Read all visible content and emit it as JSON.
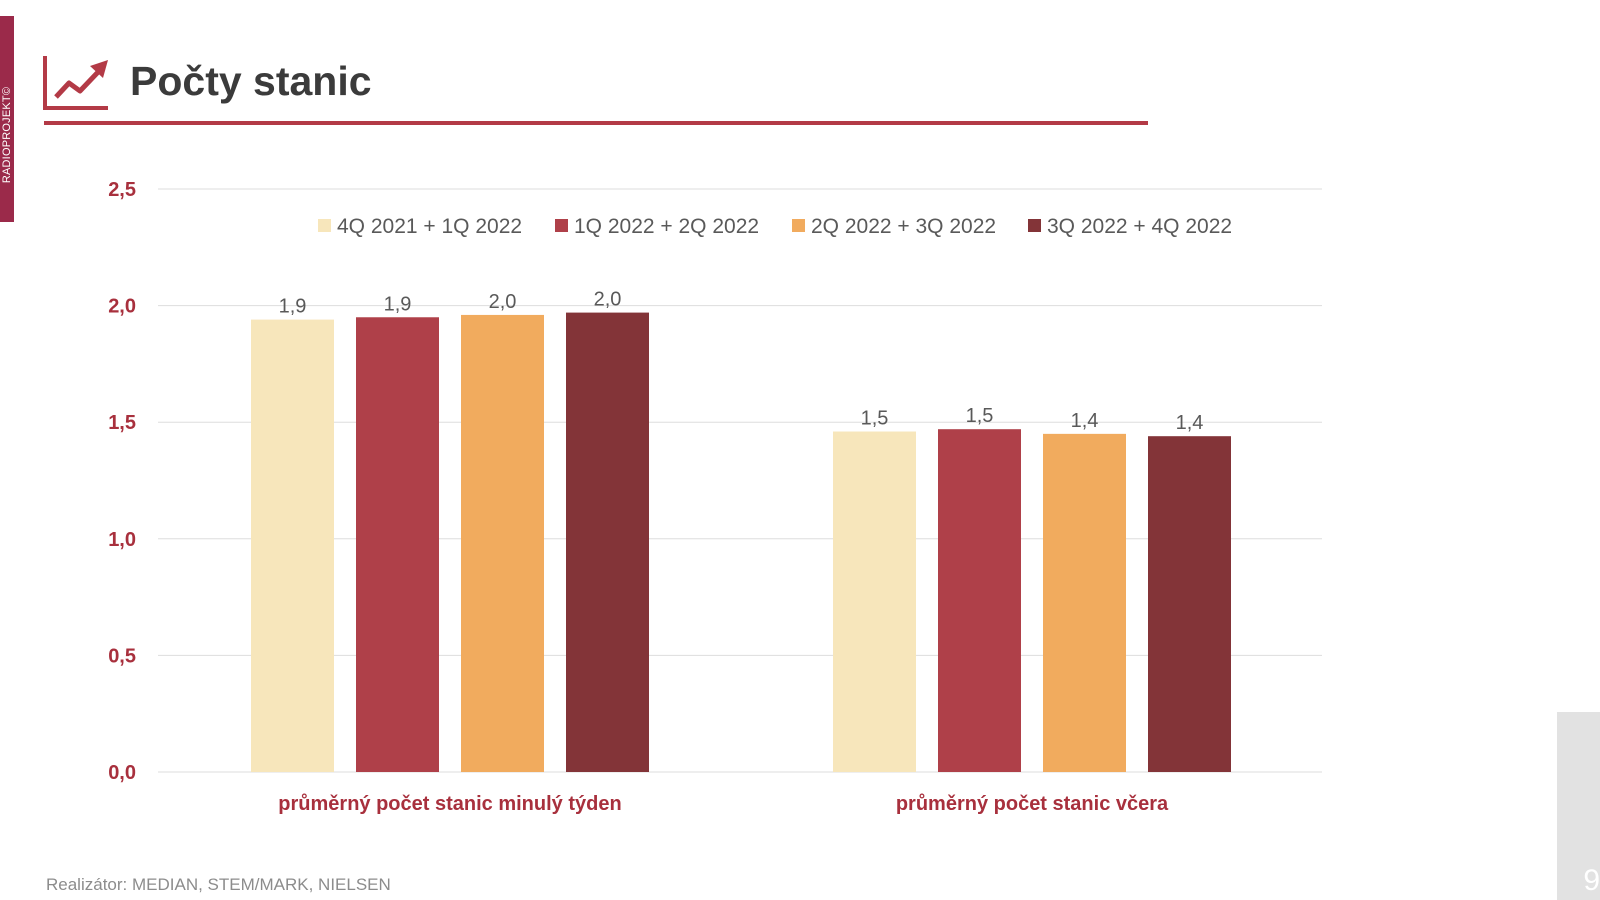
{
  "brand": {
    "side_label": "RADIOPROJEKT©"
  },
  "header": {
    "title": "Počty stanic"
  },
  "footer": {
    "source": "Realizátor: MEDIAN, STEM/MARK, NIELSEN",
    "page_number": "9"
  },
  "colors": {
    "accent": "#b33a46",
    "axis_label": "#a8303d",
    "series": [
      "#f7e6bb",
      "#af4049",
      "#f1ab5e",
      "#833438"
    ]
  },
  "chart_data": {
    "type": "bar",
    "title": "",
    "categories": [
      "průměrný počet stanic minulý týden",
      "průměrný počet stanic včera"
    ],
    "series": [
      {
        "name": "4Q 2021 + 1Q 2022",
        "values": [
          1.94,
          1.46
        ],
        "labels": [
          "1,9",
          "1,5"
        ]
      },
      {
        "name": "1Q 2022 + 2Q 2022",
        "values": [
          1.95,
          1.47
        ],
        "labels": [
          "1,9",
          "1,5"
        ]
      },
      {
        "name": "2Q 2022 + 3Q 2022",
        "values": [
          1.96,
          1.45
        ],
        "labels": [
          "2,0",
          "1,4"
        ]
      },
      {
        "name": "3Q 2022 + 4Q 2022",
        "values": [
          1.97,
          1.44
        ],
        "labels": [
          "2,0",
          "1,4"
        ]
      }
    ],
    "ylim": [
      0,
      2.5
    ],
    "yticks": [
      0,
      0.5,
      1,
      1.5,
      2,
      2.5
    ],
    "ytick_labels": [
      "0,0",
      "0,5",
      "1,0",
      "1,5",
      "2,0",
      "2,5"
    ],
    "xlabel": "",
    "ylabel": "",
    "grid": true,
    "legend_position": "top"
  }
}
